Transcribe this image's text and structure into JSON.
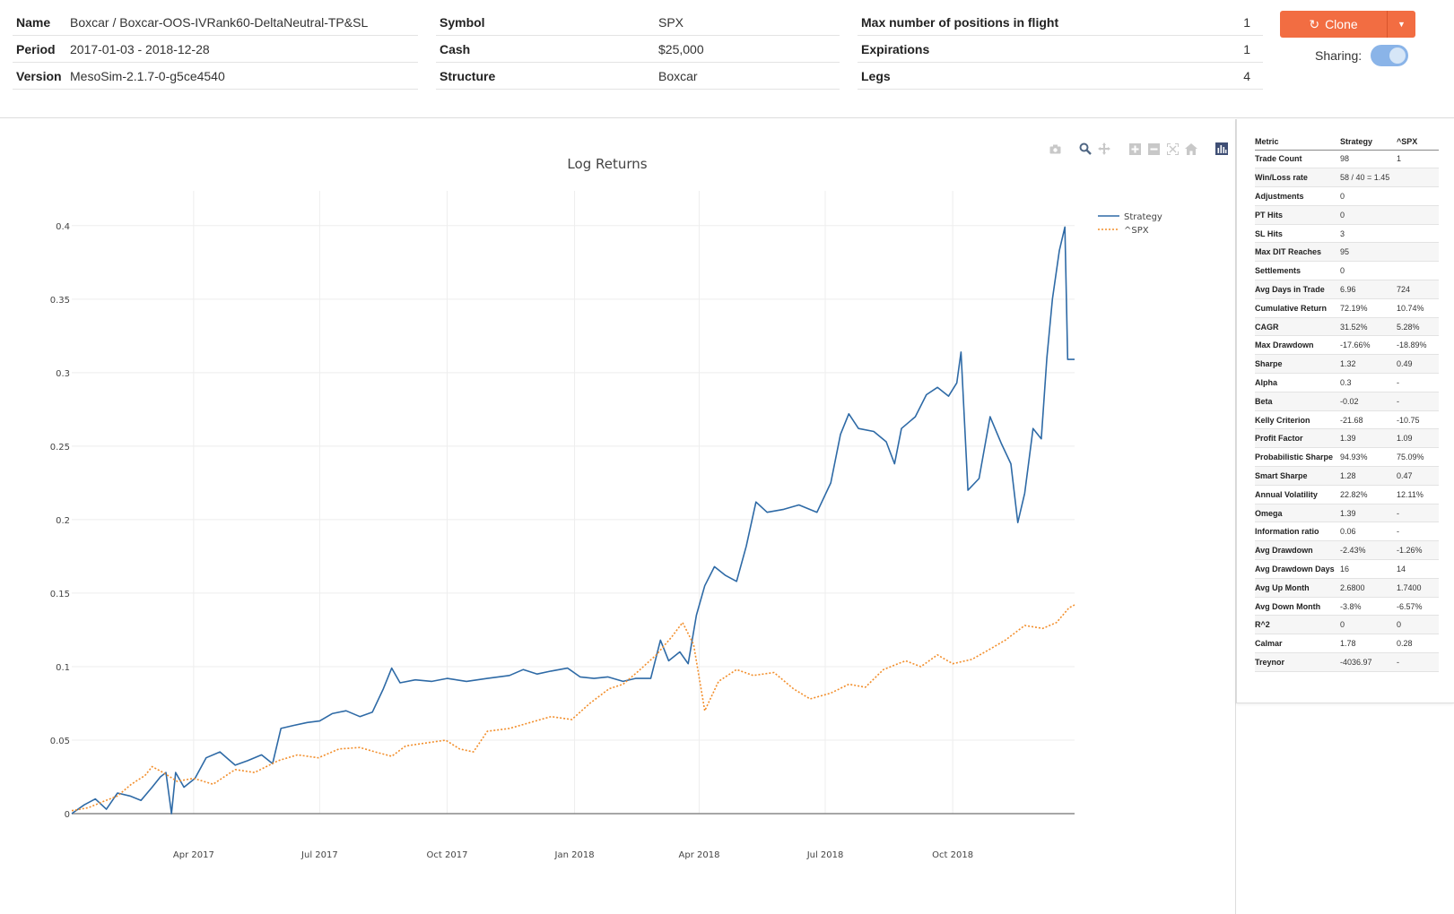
{
  "header": {
    "col1": [
      {
        "label": "Name",
        "value": "Boxcar / Boxcar-OOS-IVRank60-DeltaNeutral-TP&SL"
      },
      {
        "label": "Period",
        "value": "2017-01-03 - 2018-12-28"
      },
      {
        "label": "Version",
        "value": "MesoSim-2.1.7-0-g5ce4540"
      }
    ],
    "col2": [
      {
        "label": "Symbol",
        "value": "SPX"
      },
      {
        "label": "Cash",
        "value": "$25,000"
      },
      {
        "label": "Structure",
        "value": "Boxcar"
      }
    ],
    "col3": [
      {
        "label": "Max number of positions in flight",
        "value": "1"
      },
      {
        "label": "Expirations",
        "value": "1"
      },
      {
        "label": "Legs",
        "value": "4"
      }
    ],
    "clone_label": "Clone",
    "sharing_label": "Sharing:",
    "sharing_on": true,
    "accent_color": "#f26d42"
  },
  "modebar": {
    "icons": [
      "camera-icon",
      "zoom-icon",
      "pan-icon",
      "zoom-in-icon",
      "zoom-out-icon",
      "autoscale-icon",
      "reset-axes-icon",
      "plotly-logo-icon"
    ]
  },
  "metrics": {
    "headers": [
      "Metric",
      "Strategy",
      "^SPX"
    ],
    "rows": [
      [
        "Trade Count",
        "98",
        "1"
      ],
      [
        "Win/Loss rate",
        "58 / 40 = 1.45",
        ""
      ],
      [
        "Adjustments",
        "0",
        ""
      ],
      [
        "PT Hits",
        "0",
        ""
      ],
      [
        "SL Hits",
        "3",
        ""
      ],
      [
        "Max DIT Reaches",
        "95",
        ""
      ],
      [
        "Settlements",
        "0",
        ""
      ],
      [
        "Avg Days in Trade",
        "6.96",
        "724"
      ],
      [
        "Cumulative Return",
        "72.19%",
        "10.74%"
      ],
      [
        "CAGR",
        "31.52%",
        "5.28%"
      ],
      [
        "Max Drawdown",
        "-17.66%",
        "-18.89%"
      ],
      [
        "Sharpe",
        "1.32",
        "0.49"
      ],
      [
        "Alpha",
        "0.3",
        "-"
      ],
      [
        "Beta",
        "-0.02",
        "-"
      ],
      [
        "Kelly Criterion",
        "-21.68",
        "-10.75"
      ],
      [
        "Profit Factor",
        "1.39",
        "1.09"
      ],
      [
        "Probabilistic Sharpe",
        "94.93%",
        "75.09%"
      ],
      [
        "Smart Sharpe",
        "1.28",
        "0.47"
      ],
      [
        "Annual Volatility",
        "22.82%",
        "12.11%"
      ],
      [
        "Omega",
        "1.39",
        "-"
      ],
      [
        "Information ratio",
        "0.06",
        "-"
      ],
      [
        "Avg Drawdown",
        "-2.43%",
        "-1.26%"
      ],
      [
        "Avg Drawdown Days",
        "16",
        "14"
      ],
      [
        "Avg Up Month",
        "2.6800",
        "1.7400"
      ],
      [
        "Avg Down Month",
        "-3.8%",
        "-6.57%"
      ],
      [
        "R^2",
        "0",
        "0"
      ],
      [
        "Calmar",
        "1.78",
        "0.28"
      ],
      [
        "Treynor",
        "-4036.97",
        "-"
      ]
    ]
  },
  "chart_data": {
    "type": "line",
    "title": "Log Returns",
    "xlabel": "",
    "ylabel": "",
    "x_range": [
      "2017-01-03",
      "2018-12-28"
    ],
    "ylim": [
      0,
      0.42
    ],
    "y_ticks": [
      0,
      0.05,
      0.1,
      0.15,
      0.2,
      0.25,
      0.3,
      0.35,
      0.4
    ],
    "y_tick_labels": [
      "0",
      "0.05",
      "0.1",
      "0.15",
      "0.2",
      "0.25",
      "0.3",
      "0.35",
      "0.4"
    ],
    "x_ticks": [
      "2017-04-01",
      "2017-07-01",
      "2017-10-01",
      "2018-01-01",
      "2018-04-01",
      "2018-07-01",
      "2018-10-01"
    ],
    "x_tick_labels": [
      "Apr 2017",
      "Jul 2017",
      "Oct 2017",
      "Jan 2018",
      "Apr 2018",
      "Jul 2018",
      "Oct 2018"
    ],
    "legend": "top-right",
    "grid": true,
    "series": [
      {
        "name": "Strategy",
        "color": "#2e6aa6",
        "dash": "solid",
        "points": [
          [
            "2017-01-03",
            0.0
          ],
          [
            "2017-01-12",
            0.006
          ],
          [
            "2017-01-20",
            0.01
          ],
          [
            "2017-01-28",
            0.003
          ],
          [
            "2017-02-05",
            0.014
          ],
          [
            "2017-02-14",
            0.012
          ],
          [
            "2017-02-22",
            0.009
          ],
          [
            "2017-03-02",
            0.018
          ],
          [
            "2017-03-08",
            0.025
          ],
          [
            "2017-03-12",
            0.028
          ],
          [
            "2017-03-16",
            0.0
          ],
          [
            "2017-03-19",
            0.028
          ],
          [
            "2017-03-25",
            0.018
          ],
          [
            "2017-04-02",
            0.024
          ],
          [
            "2017-04-10",
            0.038
          ],
          [
            "2017-04-20",
            0.042
          ],
          [
            "2017-05-01",
            0.033
          ],
          [
            "2017-05-10",
            0.036
          ],
          [
            "2017-05-20",
            0.04
          ],
          [
            "2017-05-28",
            0.034
          ],
          [
            "2017-06-03",
            0.058
          ],
          [
            "2017-06-12",
            0.06
          ],
          [
            "2017-06-22",
            0.062
          ],
          [
            "2017-07-01",
            0.063
          ],
          [
            "2017-07-10",
            0.068
          ],
          [
            "2017-07-20",
            0.07
          ],
          [
            "2017-07-30",
            0.066
          ],
          [
            "2017-08-08",
            0.069
          ],
          [
            "2017-08-16",
            0.085
          ],
          [
            "2017-08-22",
            0.099
          ],
          [
            "2017-08-28",
            0.089
          ],
          [
            "2017-09-08",
            0.091
          ],
          [
            "2017-09-20",
            0.09
          ],
          [
            "2017-10-01",
            0.092
          ],
          [
            "2017-10-15",
            0.09
          ],
          [
            "2017-10-30",
            0.092
          ],
          [
            "2017-11-15",
            0.094
          ],
          [
            "2017-11-25",
            0.098
          ],
          [
            "2017-12-05",
            0.095
          ],
          [
            "2017-12-15",
            0.097
          ],
          [
            "2017-12-27",
            0.099
          ],
          [
            "2018-01-05",
            0.093
          ],
          [
            "2018-01-15",
            0.092
          ],
          [
            "2018-01-25",
            0.093
          ],
          [
            "2018-02-05",
            0.09
          ],
          [
            "2018-02-14",
            0.092
          ],
          [
            "2018-02-25",
            0.092
          ],
          [
            "2018-03-04",
            0.118
          ],
          [
            "2018-03-10",
            0.104
          ],
          [
            "2018-03-18",
            0.11
          ],
          [
            "2018-03-24",
            0.102
          ],
          [
            "2018-03-30",
            0.135
          ],
          [
            "2018-04-05",
            0.155
          ],
          [
            "2018-04-12",
            0.168
          ],
          [
            "2018-04-20",
            0.162
          ],
          [
            "2018-04-28",
            0.158
          ],
          [
            "2018-05-05",
            0.182
          ],
          [
            "2018-05-12",
            0.212
          ],
          [
            "2018-05-20",
            0.205
          ],
          [
            "2018-06-01",
            0.207
          ],
          [
            "2018-06-12",
            0.21
          ],
          [
            "2018-06-25",
            0.205
          ],
          [
            "2018-07-05",
            0.225
          ],
          [
            "2018-07-12",
            0.258
          ],
          [
            "2018-07-18",
            0.272
          ],
          [
            "2018-07-25",
            0.262
          ],
          [
            "2018-08-05",
            0.26
          ],
          [
            "2018-08-14",
            0.253
          ],
          [
            "2018-08-20",
            0.238
          ],
          [
            "2018-08-25",
            0.262
          ],
          [
            "2018-09-04",
            0.27
          ],
          [
            "2018-09-12",
            0.285
          ],
          [
            "2018-09-20",
            0.29
          ],
          [
            "2018-09-28",
            0.284
          ],
          [
            "2018-10-04",
            0.293
          ],
          [
            "2018-10-07",
            0.314
          ],
          [
            "2018-10-12",
            0.22
          ],
          [
            "2018-10-20",
            0.228
          ],
          [
            "2018-10-28",
            0.27
          ],
          [
            "2018-11-05",
            0.252
          ],
          [
            "2018-11-12",
            0.238
          ],
          [
            "2018-11-17",
            0.198
          ],
          [
            "2018-11-22",
            0.218
          ],
          [
            "2018-11-28",
            0.262
          ],
          [
            "2018-12-04",
            0.255
          ],
          [
            "2018-12-08",
            0.31
          ],
          [
            "2018-12-12",
            0.35
          ],
          [
            "2018-12-17",
            0.383
          ],
          [
            "2018-12-21",
            0.399
          ],
          [
            "2018-12-23",
            0.309
          ],
          [
            "2018-12-28",
            0.309
          ]
        ]
      },
      {
        "name": "^SPX",
        "color": "#f28e2b",
        "dash": "dotted",
        "points": [
          [
            "2017-01-03",
            0.002
          ],
          [
            "2017-01-15",
            0.004
          ],
          [
            "2017-01-25",
            0.008
          ],
          [
            "2017-02-05",
            0.012
          ],
          [
            "2017-02-15",
            0.02
          ],
          [
            "2017-02-25",
            0.026
          ],
          [
            "2017-03-02",
            0.032
          ],
          [
            "2017-03-10",
            0.028
          ],
          [
            "2017-03-20",
            0.022
          ],
          [
            "2017-04-01",
            0.024
          ],
          [
            "2017-04-15",
            0.02
          ],
          [
            "2017-05-01",
            0.03
          ],
          [
            "2017-05-15",
            0.028
          ],
          [
            "2017-06-01",
            0.036
          ],
          [
            "2017-06-15",
            0.04
          ],
          [
            "2017-06-30",
            0.038
          ],
          [
            "2017-07-15",
            0.044
          ],
          [
            "2017-07-30",
            0.045
          ],
          [
            "2017-08-10",
            0.042
          ],
          [
            "2017-08-22",
            0.039
          ],
          [
            "2017-09-01",
            0.046
          ],
          [
            "2017-09-15",
            0.048
          ],
          [
            "2017-09-30",
            0.05
          ],
          [
            "2017-10-10",
            0.044
          ],
          [
            "2017-10-20",
            0.042
          ],
          [
            "2017-10-30",
            0.056
          ],
          [
            "2017-11-15",
            0.058
          ],
          [
            "2017-11-30",
            0.062
          ],
          [
            "2017-12-15",
            0.066
          ],
          [
            "2017-12-30",
            0.064
          ],
          [
            "2018-01-12",
            0.075
          ],
          [
            "2018-01-26",
            0.085
          ],
          [
            "2018-02-05",
            0.088
          ],
          [
            "2018-02-15",
            0.096
          ],
          [
            "2018-03-01",
            0.108
          ],
          [
            "2018-03-12",
            0.12
          ],
          [
            "2018-03-20",
            0.13
          ],
          [
            "2018-03-28",
            0.115
          ],
          [
            "2018-04-05",
            0.07
          ],
          [
            "2018-04-15",
            0.09
          ],
          [
            "2018-04-28",
            0.098
          ],
          [
            "2018-05-10",
            0.094
          ],
          [
            "2018-05-25",
            0.096
          ],
          [
            "2018-06-08",
            0.085
          ],
          [
            "2018-06-20",
            0.078
          ],
          [
            "2018-07-05",
            0.082
          ],
          [
            "2018-07-18",
            0.088
          ],
          [
            "2018-07-30",
            0.086
          ],
          [
            "2018-08-12",
            0.098
          ],
          [
            "2018-08-28",
            0.104
          ],
          [
            "2018-09-08",
            0.1
          ],
          [
            "2018-09-20",
            0.108
          ],
          [
            "2018-10-01",
            0.102
          ],
          [
            "2018-10-15",
            0.105
          ],
          [
            "2018-10-28",
            0.112
          ],
          [
            "2018-11-08",
            0.118
          ],
          [
            "2018-11-22",
            0.128
          ],
          [
            "2018-12-05",
            0.126
          ],
          [
            "2018-12-15",
            0.13
          ],
          [
            "2018-12-24",
            0.14
          ],
          [
            "2018-12-28",
            0.142
          ]
        ]
      }
    ]
  }
}
